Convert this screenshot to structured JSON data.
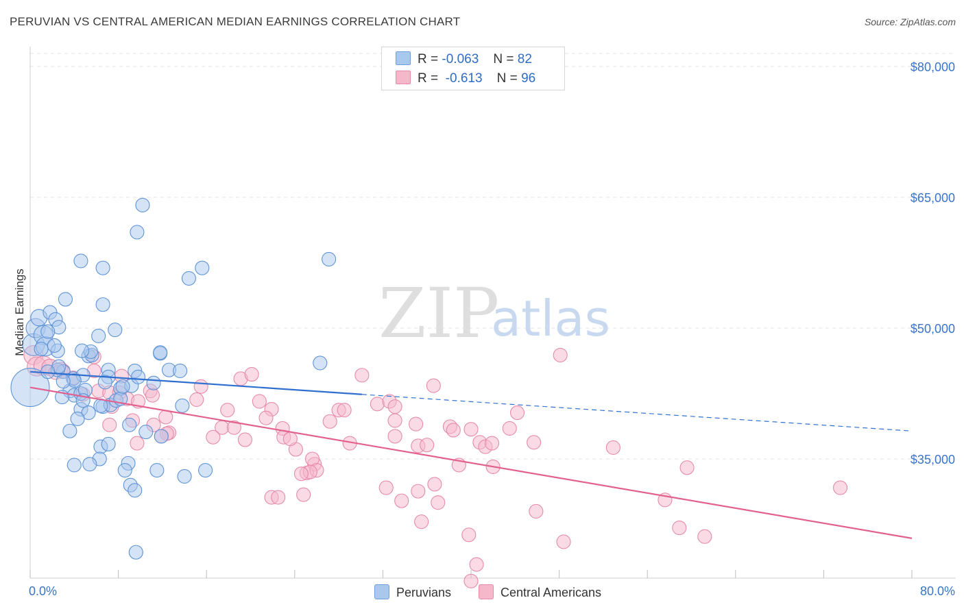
{
  "header": {
    "title": "PERUVIAN VS CENTRAL AMERICAN MEDIAN EARNINGS CORRELATION CHART",
    "source": "Source: ZipAtlas.com"
  },
  "legend": {
    "r_label": "R =",
    "n_label": "N =",
    "rows": [
      {
        "r": "-0.063",
        "n": "82",
        "color": "#a9c8ee"
      },
      {
        "r": "-0.613",
        "n": "96",
        "color": "#f5b8cb"
      }
    ]
  },
  "bottom_legend": {
    "items": [
      {
        "label": "Peruvians"
      },
      {
        "label": "Central Americans"
      }
    ]
  },
  "watermark": {
    "zip": "ZIP",
    "atlas": "atlas"
  },
  "colors": {
    "peruvians_fill": "#a9c8ee",
    "peruvians_stroke": "#5d93d6",
    "peruvians_line": "#2f6fcf",
    "central_fill": "#f5b8cb",
    "central_stroke": "#e68aa8",
    "central_line": "#e2608d",
    "tick_label": "#3a74c8",
    "grid": "#e2e2e2"
  },
  "chart_data": {
    "type": "scatter",
    "title": "PERUVIAN VS CENTRAL AMERICAN MEDIAN EARNINGS CORRELATION CHART",
    "xlabel": "",
    "ylabel": "Median Earnings",
    "xlim": [
      0,
      84
    ],
    "ylim": [
      20000,
      82000
    ],
    "x_tick_labels": {
      "left": "0.0%",
      "right": "80.0%"
    },
    "y_ticks": [
      {
        "value": 80000,
        "label": "$80,000"
      },
      {
        "value": 65000,
        "label": "$65,000"
      },
      {
        "value": 50000,
        "label": "$50,000"
      },
      {
        "value": 35000,
        "label": "$35,000"
      }
    ],
    "grid": "horizontal dashed",
    "legend_position": "top-center",
    "series": [
      {
        "name": "Peruvians",
        "r": -0.063,
        "n": 82,
        "trend": {
          "x0": 0,
          "y0": 45000,
          "x1": 30.1,
          "y1": 42400,
          "dashed_to_x": 80,
          "dashed_to_y": 38200
        },
        "points": [
          [
            0,
            43200,
            28
          ],
          [
            0.3,
            48100,
            16
          ],
          [
            0.5,
            50000,
            14
          ],
          [
            1.2,
            49200,
            14
          ],
          [
            1.4,
            47900,
            14
          ],
          [
            0.8,
            51200,
            12
          ],
          [
            1.8,
            51800,
            10
          ],
          [
            2.3,
            51000,
            10
          ],
          [
            2.6,
            50100,
            10
          ],
          [
            2.5,
            47400,
            10
          ],
          [
            3.2,
            53300,
            10
          ],
          [
            3.0,
            45000,
            10
          ],
          [
            3.9,
            44200,
            10
          ],
          [
            2.5,
            45200,
            10
          ],
          [
            3.6,
            42800,
            10
          ],
          [
            4.0,
            42300,
            10
          ],
          [
            4.8,
            44600,
            10
          ],
          [
            5.3,
            46800,
            10
          ],
          [
            5.6,
            46900,
            10
          ],
          [
            5.5,
            47300,
            10
          ],
          [
            4.7,
            47400,
            10
          ],
          [
            6.2,
            49100,
            10
          ],
          [
            6.6,
            52700,
            10
          ],
          [
            7.7,
            49800,
            10
          ],
          [
            4.6,
            57700,
            10
          ],
          [
            6.6,
            56900,
            10
          ],
          [
            10.2,
            64100,
            10
          ],
          [
            9.7,
            61000,
            10
          ],
          [
            14.4,
            55700,
            10
          ],
          [
            15.6,
            56900,
            10
          ],
          [
            27.1,
            57900,
            10
          ],
          [
            26.3,
            46000,
            10
          ],
          [
            11.8,
            47100,
            10
          ],
          [
            11.8,
            47200,
            10
          ],
          [
            9.5,
            45100,
            10
          ],
          [
            7.1,
            45200,
            10
          ],
          [
            8.2,
            43100,
            10
          ],
          [
            7.1,
            44400,
            10
          ],
          [
            9.2,
            43400,
            10
          ],
          [
            11.2,
            43700,
            10
          ],
          [
            4.6,
            42500,
            10
          ],
          [
            2.9,
            42100,
            10
          ],
          [
            4.6,
            40700,
            10
          ],
          [
            5.3,
            40300,
            10
          ],
          [
            6.6,
            41000,
            10
          ],
          [
            7.3,
            41200,
            10
          ],
          [
            7.8,
            41700,
            10
          ],
          [
            8.2,
            41900,
            10
          ],
          [
            6.4,
            41100,
            10
          ],
          [
            4.3,
            39600,
            10
          ],
          [
            3.6,
            38200,
            10
          ],
          [
            9.0,
            38900,
            10
          ],
          [
            10.5,
            38100,
            10
          ],
          [
            11.9,
            37600,
            10
          ],
          [
            13.8,
            41100,
            10
          ],
          [
            6.4,
            36400,
            10
          ],
          [
            7.1,
            36700,
            10
          ],
          [
            6.3,
            35000,
            10
          ],
          [
            4.0,
            34300,
            10
          ],
          [
            5.4,
            34400,
            10
          ],
          [
            8.9,
            34500,
            10
          ],
          [
            8.6,
            33700,
            10
          ],
          [
            11.5,
            33700,
            10
          ],
          [
            14.0,
            33000,
            10
          ],
          [
            15.9,
            33700,
            10
          ],
          [
            9.1,
            32000,
            10
          ],
          [
            9.5,
            31400,
            10
          ],
          [
            9.6,
            24300,
            10
          ],
          [
            4.0,
            44000,
            10
          ],
          [
            5.0,
            42900,
            10
          ],
          [
            6.8,
            43800,
            10
          ],
          [
            2.6,
            45600,
            10
          ],
          [
            1.0,
            47600,
            10
          ],
          [
            1.6,
            49600,
            10
          ],
          [
            2.2,
            48000,
            10
          ],
          [
            3.0,
            43900,
            10
          ],
          [
            1.6,
            45000,
            10
          ],
          [
            8.4,
            43300,
            10
          ],
          [
            9.8,
            44400,
            10
          ],
          [
            12.6,
            45200,
            10
          ],
          [
            13.6,
            45100,
            10
          ],
          [
            4.8,
            41700,
            10
          ]
        ]
      },
      {
        "name": "Central Americans",
        "r": -0.613,
        "n": 96,
        "trend": {
          "x0": 0,
          "y0": 43200,
          "x1": 80,
          "y1": 25900
        },
        "points": [
          [
            0.3,
            46900,
            14
          ],
          [
            0.6,
            45600,
            14
          ],
          [
            1.2,
            45700,
            14
          ],
          [
            1.8,
            45500,
            12
          ],
          [
            2.3,
            44900,
            10
          ],
          [
            2.8,
            45300,
            10
          ],
          [
            3.0,
            45100,
            10
          ],
          [
            3.9,
            44300,
            10
          ],
          [
            4.8,
            42400,
            10
          ],
          [
            5.8,
            46700,
            10
          ],
          [
            5.8,
            45100,
            10
          ],
          [
            6.2,
            42800,
            10
          ],
          [
            7.2,
            42600,
            10
          ],
          [
            8.3,
            44500,
            10
          ],
          [
            8.1,
            42600,
            10
          ],
          [
            8.8,
            41900,
            10
          ],
          [
            9.8,
            41600,
            10
          ],
          [
            10.9,
            42800,
            10
          ],
          [
            11.1,
            42300,
            10
          ],
          [
            7.4,
            41000,
            10
          ],
          [
            7.2,
            38900,
            10
          ],
          [
            9.3,
            39400,
            10
          ],
          [
            11.2,
            38900,
            10
          ],
          [
            12.3,
            39800,
            10
          ],
          [
            12.6,
            38000,
            10
          ],
          [
            12.4,
            37900,
            10
          ],
          [
            11.9,
            37600,
            10
          ],
          [
            9.7,
            36800,
            10
          ],
          [
            15.5,
            43300,
            10
          ],
          [
            15.1,
            41800,
            10
          ],
          [
            17.9,
            40600,
            10
          ],
          [
            17.4,
            38600,
            10
          ],
          [
            16.6,
            37500,
            10
          ],
          [
            18.5,
            38600,
            10
          ],
          [
            19.5,
            37200,
            10
          ],
          [
            19.1,
            44200,
            10
          ],
          [
            20.1,
            44700,
            10
          ],
          [
            20.8,
            41600,
            10
          ],
          [
            21.9,
            40700,
            10
          ],
          [
            21.4,
            39700,
            10
          ],
          [
            22.9,
            38500,
            10
          ],
          [
            23.0,
            37500,
            10
          ],
          [
            24.1,
            36100,
            10
          ],
          [
            23.6,
            37300,
            10
          ],
          [
            25.8,
            34400,
            10
          ],
          [
            25.6,
            35000,
            10
          ],
          [
            25.1,
            33400,
            10
          ],
          [
            26.0,
            33700,
            10
          ],
          [
            25.4,
            33500,
            10
          ],
          [
            24.6,
            33300,
            10
          ],
          [
            28.0,
            40600,
            10
          ],
          [
            28.5,
            40600,
            10
          ],
          [
            27.2,
            39300,
            10
          ],
          [
            29.0,
            36800,
            10
          ],
          [
            30.1,
            44600,
            10
          ],
          [
            31.5,
            41300,
            10
          ],
          [
            32.6,
            41600,
            10
          ],
          [
            33.1,
            41000,
            10
          ],
          [
            33.1,
            39400,
            10
          ],
          [
            33.1,
            37600,
            10
          ],
          [
            35.0,
            39000,
            10
          ],
          [
            35.2,
            36500,
            10
          ],
          [
            36.0,
            36600,
            10
          ],
          [
            36.6,
            43400,
            10
          ],
          [
            38.1,
            38700,
            10
          ],
          [
            38.4,
            38300,
            10
          ],
          [
            38.9,
            34300,
            10
          ],
          [
            40.0,
            38400,
            10
          ],
          [
            40.8,
            36900,
            10
          ],
          [
            41.3,
            36400,
            10
          ],
          [
            41.9,
            36800,
            10
          ],
          [
            43.5,
            38500,
            10
          ],
          [
            44.2,
            40300,
            10
          ],
          [
            45.7,
            36900,
            10
          ],
          [
            45.9,
            29000,
            10
          ],
          [
            48.1,
            46900,
            10
          ],
          [
            48.4,
            25500,
            10
          ],
          [
            32.3,
            31700,
            10
          ],
          [
            35.2,
            31300,
            10
          ],
          [
            33.7,
            30200,
            10
          ],
          [
            36.7,
            32100,
            10
          ],
          [
            37.0,
            30000,
            10
          ],
          [
            35.5,
            27800,
            10
          ],
          [
            39.8,
            26300,
            10
          ],
          [
            40.5,
            22900,
            10
          ],
          [
            40.0,
            21000,
            10
          ],
          [
            21.9,
            30600,
            10
          ],
          [
            22.5,
            30600,
            10
          ],
          [
            24.8,
            30900,
            10
          ],
          [
            52.9,
            36300,
            10
          ],
          [
            59.6,
            34000,
            10
          ],
          [
            57.6,
            30300,
            10
          ],
          [
            58.9,
            27100,
            10
          ],
          [
            61.2,
            26100,
            10
          ],
          [
            73.5,
            31700,
            10
          ],
          [
            42.0,
            34100,
            10
          ]
        ]
      }
    ]
  }
}
